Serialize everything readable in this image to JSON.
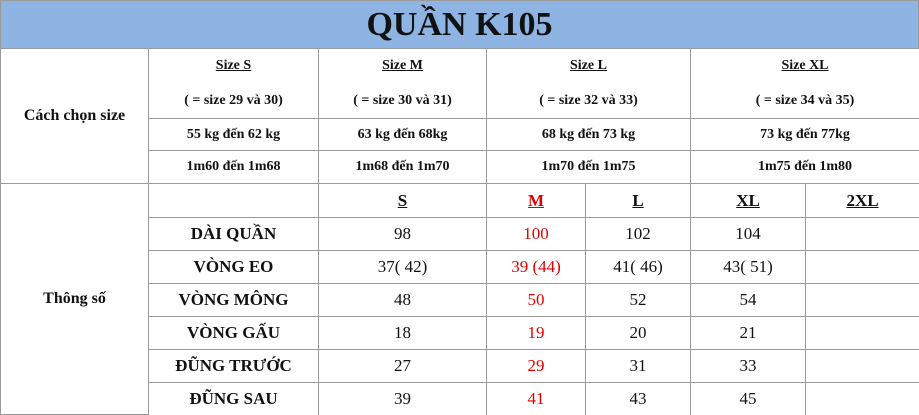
{
  "title": "QUẦN K105",
  "size_guide": {
    "label": "Cách chọn size",
    "sizes": [
      {
        "name": "Size S",
        "range": "( = size 29 và 30)",
        "weight": "55 kg đến 62 kg",
        "height": "1m60 đến 1m68"
      },
      {
        "name": "Size M",
        "range": "( = size 30 và 31)",
        "weight": "63 kg đến 68kg",
        "height": "1m68 đến 1m70"
      },
      {
        "name": "Size L",
        "range": "( = size 32 và 33)",
        "weight": "68 kg đến 73 kg",
        "height": "1m70 đến 1m75"
      },
      {
        "name": "Size XL",
        "range": "( = size 34 và 35)",
        "weight": "73 kg đến 77kg",
        "height": "1m75 đến 1m80"
      }
    ]
  },
  "specs": {
    "label": "Thông số",
    "columns": [
      "S",
      "M",
      "L",
      "XL",
      "2XL"
    ],
    "rows": [
      {
        "name": "DÀI QUẦN",
        "values": [
          98,
          100,
          102,
          104
        ]
      },
      {
        "name": "VÒNG EO",
        "values": [
          "37( 42)",
          "39 (44)",
          "41( 46)",
          "43( 51)"
        ]
      },
      {
        "name": "VÒNG MÔNG",
        "values": [
          48,
          50,
          52,
          54
        ]
      },
      {
        "name": "VÒNG GẤU",
        "values": [
          18,
          19,
          20,
          21
        ]
      },
      {
        "name": "ĐŨNG TRƯỚC",
        "values": [
          27,
          29,
          31,
          33
        ]
      },
      {
        "name": "ĐŨNG SAU",
        "values": [
          39,
          41,
          43,
          45
        ]
      }
    ]
  }
}
